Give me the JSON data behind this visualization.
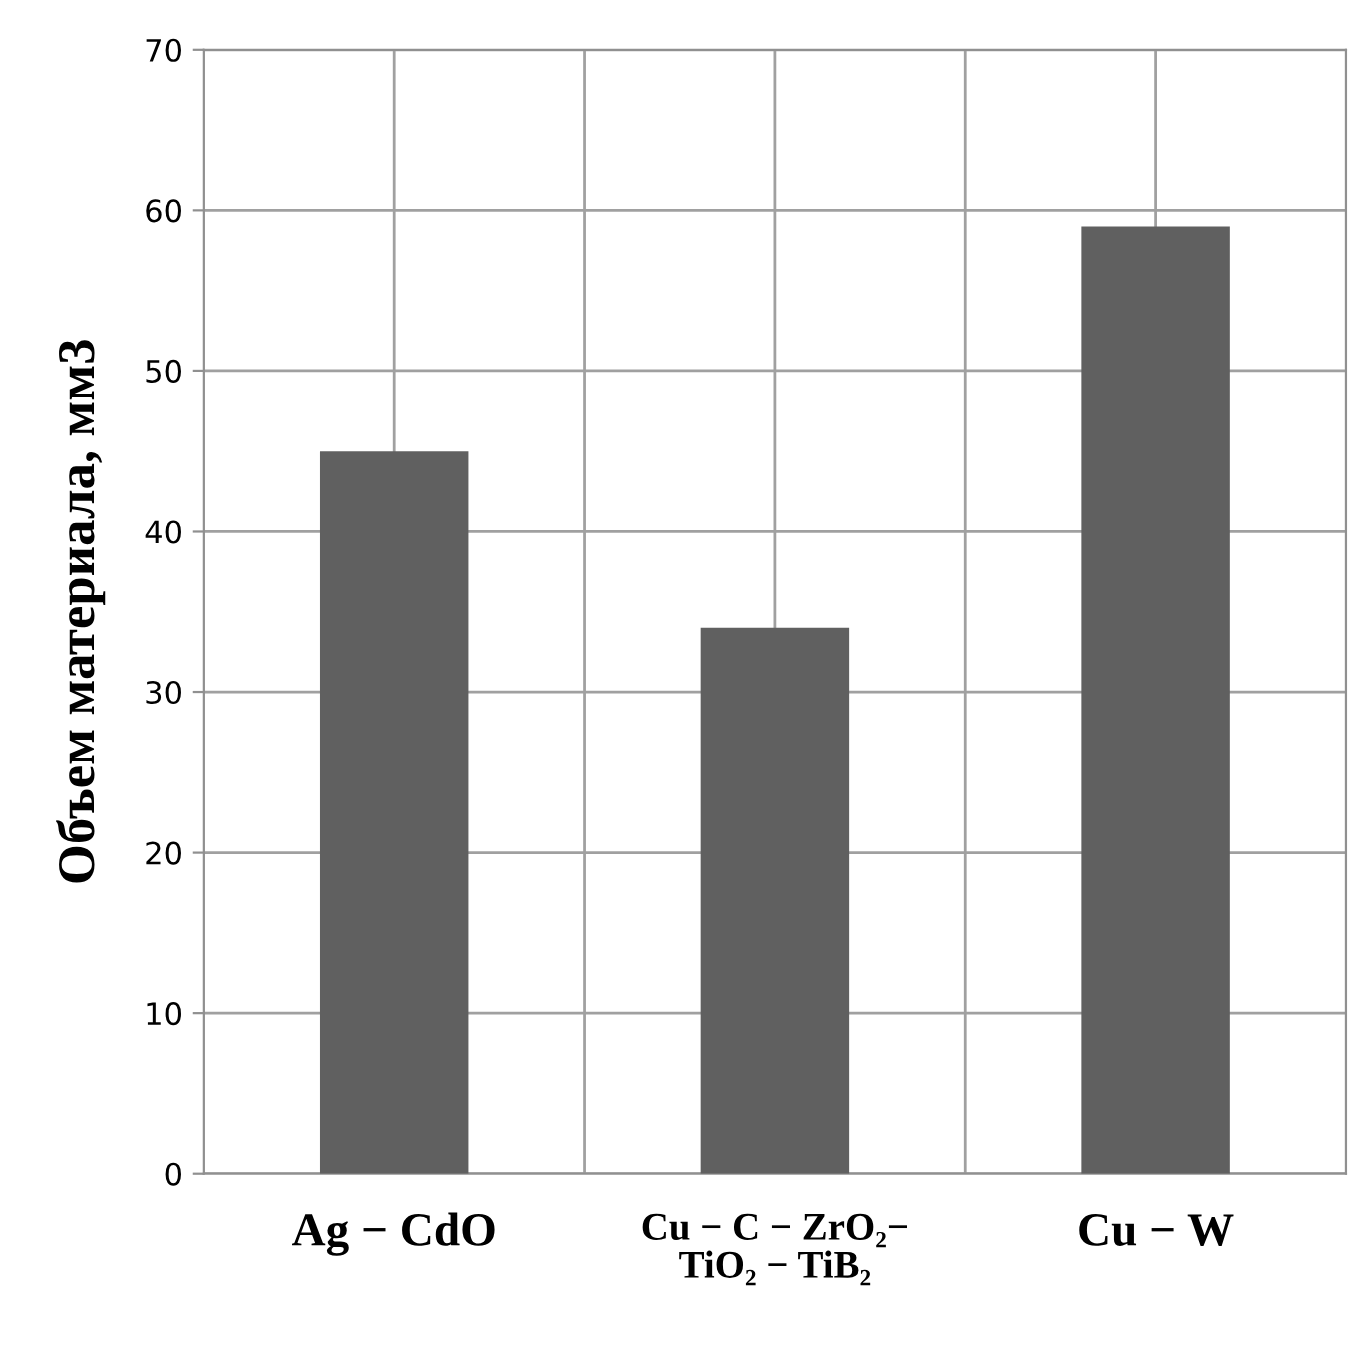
{
  "chart_data": {
    "type": "bar",
    "ylabel": "Объем материала, мм3",
    "categories": [
      "Ag − CdO",
      "Cu − C − ZrO₂−\nTiO₂ − TiB₂",
      "Cu − W"
    ],
    "values": [
      45,
      34,
      59
    ],
    "color": "#606060",
    "ylim": [
      0,
      70
    ],
    "yticks": [
      0,
      10,
      20,
      30,
      40,
      50,
      60,
      70
    ],
    "grid": true
  }
}
